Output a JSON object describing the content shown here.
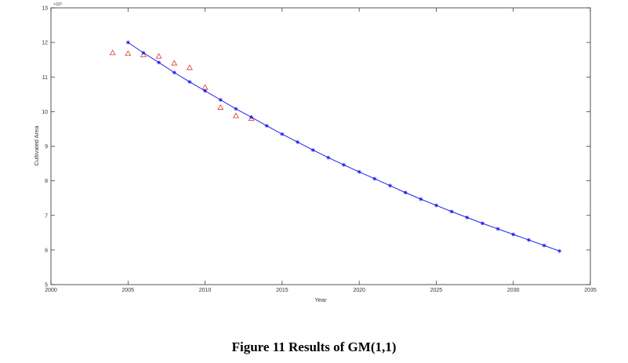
{
  "caption": "Figure 11 Results of GM(1,1)",
  "chart_data": {
    "type": "line",
    "xlabel": "Year",
    "ylabel": "Cultivated Area",
    "y_exponent": "×10⁵",
    "xlim": [
      2000,
      2035
    ],
    "ylim": [
      5,
      13
    ],
    "xticks": [
      2000,
      2005,
      2010,
      2015,
      2020,
      2025,
      2030,
      2035
    ],
    "yticks": [
      5,
      6,
      7,
      8,
      9,
      10,
      11,
      12,
      13
    ],
    "grid": false,
    "colors": {
      "actual": "#e03030",
      "predicted": "#2020ee"
    },
    "series": [
      {
        "marker": "triangle",
        "x": [
          2004,
          2005,
          2006,
          2007,
          2008,
          2009,
          2010,
          2011,
          2012,
          2013
        ],
        "y": [
          11.7,
          11.68,
          11.64,
          11.6,
          11.4,
          11.27,
          10.7,
          10.12,
          9.88,
          9.8
        ]
      },
      {
        "marker": "asterisk",
        "line": true,
        "x": [
          2005,
          2006,
          2007,
          2008,
          2009,
          2010,
          2011,
          2012,
          2013,
          2014,
          2015,
          2016,
          2017,
          2018,
          2019,
          2020,
          2021,
          2022,
          2023,
          2024,
          2025,
          2026,
          2027,
          2028,
          2029,
          2030,
          2031,
          2032,
          2033
        ],
        "y": [
          12.0,
          11.7,
          11.42,
          11.13,
          10.86,
          10.6,
          10.34,
          10.08,
          9.84,
          9.59,
          9.35,
          9.12,
          8.89,
          8.67,
          8.46,
          8.26,
          8.06,
          7.86,
          7.66,
          7.47,
          7.29,
          7.11,
          6.94,
          6.77,
          6.61,
          6.45,
          6.29,
          6.13,
          5.97
        ]
      }
    ]
  }
}
